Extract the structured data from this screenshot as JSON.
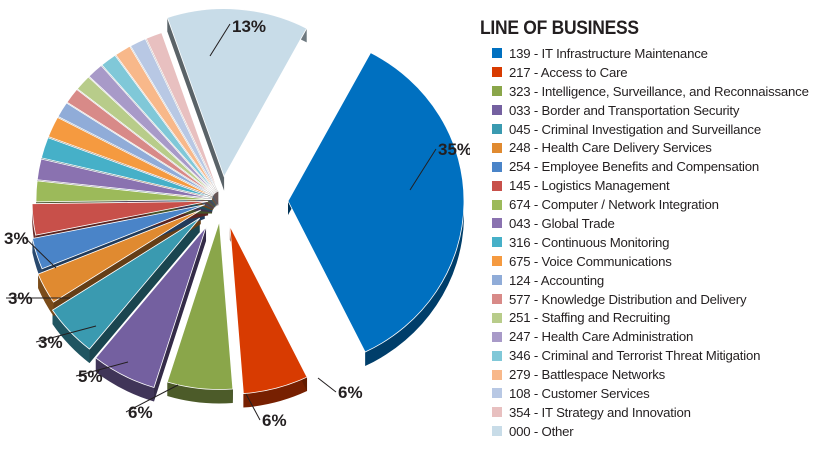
{
  "chart_data": {
    "type": "pie",
    "legend_title": "LINE OF BUSINESS",
    "legend_position": "right",
    "slices": [
      {
        "label": "139 - IT Infrastructure Maintenance",
        "value": 35,
        "color": "#0070c0",
        "pct_label": "35%"
      },
      {
        "label": "217 - Access to Care",
        "value": 6,
        "color": "#d83b01",
        "pct_label": "6%"
      },
      {
        "label": "323 - Intelligence, Surveillance, and Reconnaissance",
        "value": 6,
        "color": "#8aa64a",
        "pct_label": "6%"
      },
      {
        "label": "033 - Border and Transportation Security",
        "value": 6,
        "color": "#7460a0",
        "pct_label": "6%"
      },
      {
        "label": "045 - Criminal Investigation and Surveillance",
        "value": 5,
        "color": "#3a9ab0",
        "pct_label": "5%"
      },
      {
        "label": "248 - Health Care Delivery Services",
        "value": 3,
        "color": "#e08a30",
        "pct_label": "3%"
      },
      {
        "label": "254 - Employee Benefits and Compensation",
        "value": 3,
        "color": "#4a84c8",
        "pct_label": "3%"
      },
      {
        "label": "145 - Logistics Management",
        "value": 3,
        "color": "#c8504a",
        "pct_label": "3%"
      },
      {
        "label": "674 - Computer / Network Integration",
        "value": 2,
        "color": "#9cba5a",
        "pct_label": ""
      },
      {
        "label": "043 - Global Trade",
        "value": 2,
        "color": "#8a72b0",
        "pct_label": ""
      },
      {
        "label": "316 - Continuous Monitoring",
        "value": 2,
        "color": "#46b0c8",
        "pct_label": ""
      },
      {
        "label": "675 - Voice Communications",
        "value": 2,
        "color": "#f59a40",
        "pct_label": ""
      },
      {
        "label": "124 - Accounting",
        "value": 1.5,
        "color": "#90acd8",
        "pct_label": ""
      },
      {
        "label": "577 - Knowledge Distribution and Delivery",
        "value": 1.5,
        "color": "#d88a88",
        "pct_label": ""
      },
      {
        "label": "251 - Staffing and Recruiting",
        "value": 1.5,
        "color": "#b8cc8a",
        "pct_label": ""
      },
      {
        "label": "247 - Health Care Administration",
        "value": 1.5,
        "color": "#a89ac8",
        "pct_label": ""
      },
      {
        "label": "346 - Criminal and Terrorist Threat Mitigation",
        "value": 1.5,
        "color": "#80c8d8",
        "pct_label": ""
      },
      {
        "label": "279 - Battlespace Networks",
        "value": 1.5,
        "color": "#f8b88a",
        "pct_label": ""
      },
      {
        "label": "108 - Customer Services",
        "value": 1.5,
        "color": "#b8c8e4",
        "pct_label": ""
      },
      {
        "label": "354 - IT Strategy and Innovation",
        "value": 1.5,
        "color": "#e8c0c0",
        "pct_label": ""
      },
      {
        "label": "000 - Other",
        "value": 13,
        "color": "#c8dce8",
        "pct_label": "13%"
      }
    ]
  }
}
